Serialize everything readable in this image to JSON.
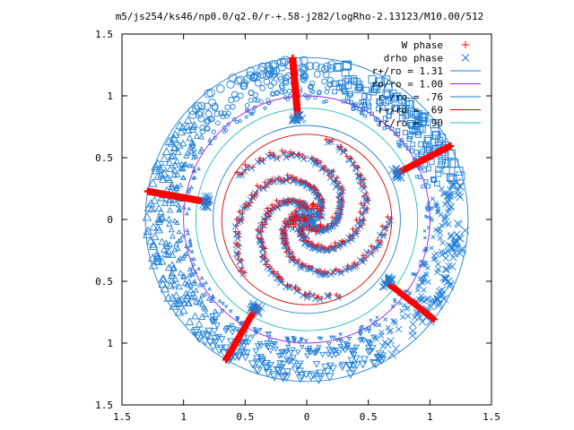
{
  "chart_data": {
    "type": "scatter",
    "title": "m5/js254/ks46/np0.0/q2.0/r-+.58-j282/logRho-2.13123/M10.00/512",
    "xlabel": "",
    "ylabel": "",
    "xlim": [
      -1.5,
      1.5
    ],
    "ylim": [
      -1.5,
      1.5
    ],
    "x_ticks": [
      "1.5",
      "1",
      "0.5",
      "0",
      "0.5",
      "1",
      "1.5"
    ],
    "y_ticks": [
      "1.5",
      "1",
      "0.5",
      "0",
      "0.5",
      "1",
      "1.5"
    ],
    "x_tick_values": [
      -1.5,
      -1,
      -0.5,
      0,
      0.5,
      1,
      1.5
    ],
    "y_tick_values": [
      1.5,
      1,
      0.5,
      0,
      -0.5,
      -1,
      -1.5
    ],
    "grid": false,
    "legend_position": "top-right",
    "legend": [
      {
        "label": "W phase",
        "marker": "plus",
        "color": "#ff0000"
      },
      {
        "label": "drho phase",
        "marker": "cross",
        "color": "#1e7fd8"
      },
      {
        "label": "r+/ro = 1.31",
        "marker": "line",
        "color": "#1e7fd8"
      },
      {
        "label": "ro/ro = 1.00",
        "marker": "line",
        "color": "#a020f0"
      },
      {
        "label": "r-/ro = .76",
        "marker": "line",
        "color": "#1e7fd8"
      },
      {
        "label": "r+/ro = .69",
        "marker": "line",
        "color": "#dd0000"
      },
      {
        "label": "rc/ro = .90",
        "marker": "line",
        "color": "#20c0c0"
      }
    ],
    "circles": [
      {
        "r": 1.31,
        "color": "#1e7fd8"
      },
      {
        "r": 1.0,
        "color": "#a020f0"
      },
      {
        "r": 0.76,
        "color": "#1e7fd8"
      },
      {
        "r": 0.69,
        "color": "#dd0000"
      },
      {
        "r": 0.9,
        "color": "#20c0c0"
      }
    ],
    "w_phase_spokes": [
      {
        "angle_deg": 95,
        "r_from": 0.82,
        "r_to": 1.31
      },
      {
        "angle_deg": 27,
        "r_from": 0.82,
        "r_to": 1.31
      },
      {
        "angle_deg": -38,
        "r_from": 0.82,
        "r_to": 1.31
      },
      {
        "angle_deg": -120,
        "r_from": 0.82,
        "r_to": 1.31
      },
      {
        "angle_deg": 170,
        "r_from": 0.82,
        "r_to": 1.31
      }
    ],
    "spiral_arms": {
      "count": 5,
      "r_inner": 0.08,
      "r_outer": 0.66,
      "turn_deg": 200,
      "start_deg": 90
    },
    "outer_ring_markers": [
      "square",
      "circle",
      "triangle-up",
      "triangle-down",
      "cross"
    ]
  },
  "colors": {
    "w_phase": "#ff0000",
    "drho_phase": "#1e7fd8",
    "axis": "#000000"
  }
}
